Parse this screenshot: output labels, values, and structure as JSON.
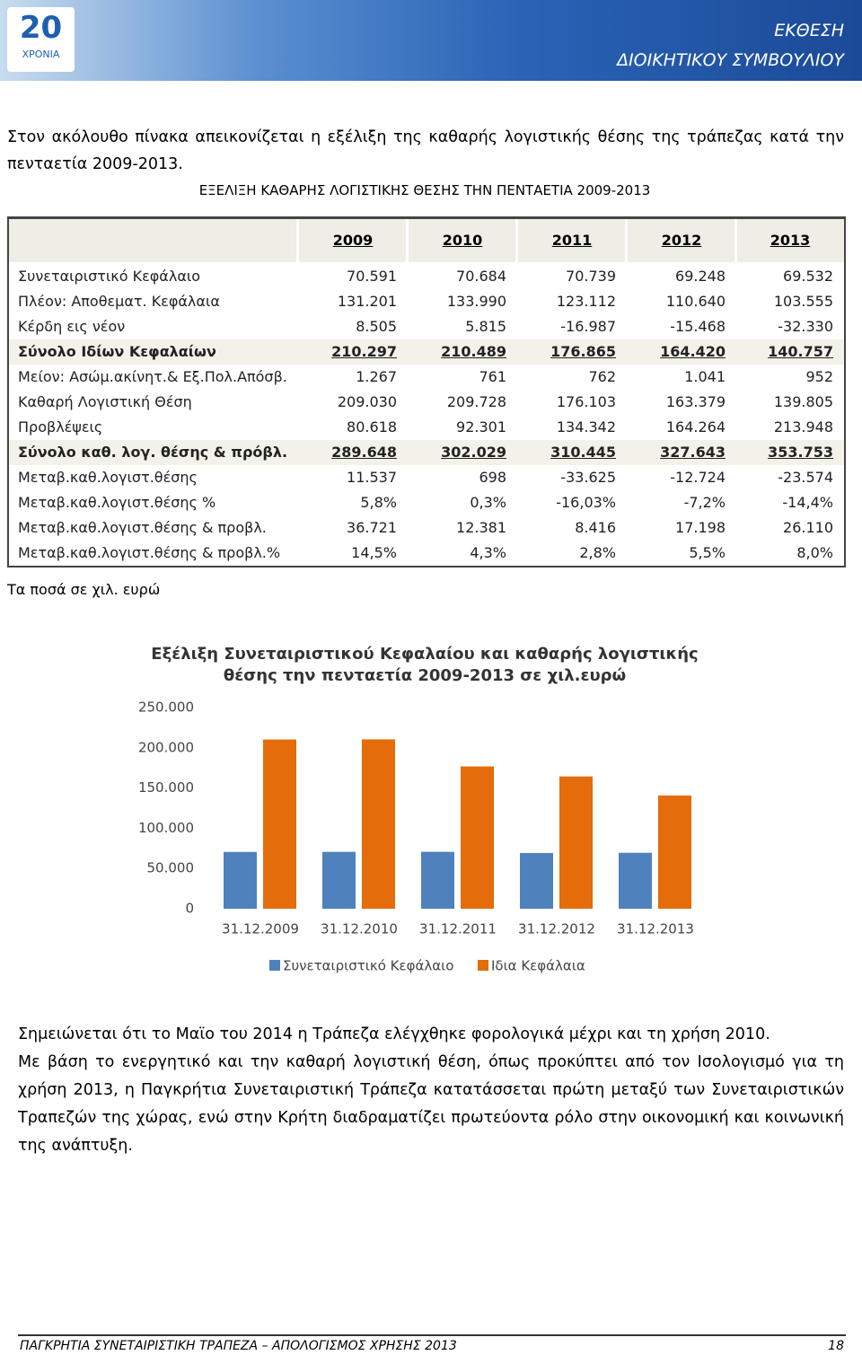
{
  "header": {
    "logo_number": "20",
    "logo_text": "ΧΡΟΝΙΑ",
    "title_line1": "ΕΚΘΕΣΗ",
    "title_line2": "ΔΙΟΙΚΗΤΙΚΟΥ ΣΥΜΒΟΥΛΙΟΥ"
  },
  "intro": "Στον ακόλουθο πίνακα απεικονίζεται η εξέλιξη της καθαρής λογιστικής θέσης της τράπεζας κατά την πενταετία 2009-2013.",
  "table": {
    "title": "ΕΞΕΛΙΞΗ ΚΑΘΑΡΗΣ ΛΟΓΙΣΤΙΚΗΣ ΘΕΣΗΣ ΤΗΝ ΠΕΝΤΑΕΤΙΑ 2009-2013",
    "columns": [
      "2009",
      "2010",
      "2011",
      "2012",
      "2013"
    ],
    "rows": [
      [
        "Συνεταιριστικό Κεφάλαιο",
        "70.591",
        "70.684",
        "70.739",
        "69.248",
        "69.532"
      ],
      [
        "Πλέον: Αποθεματ. Κεφάλαια",
        "131.201",
        "133.990",
        "123.112",
        "110.640",
        "103.555"
      ],
      [
        "Κέρδη εις νέον",
        "8.505",
        "5.815",
        "-16.987",
        "-15.468",
        "-32.330"
      ],
      [
        "Σύνολο Ιδίων Κεφαλαίων",
        "210.297",
        "210.489",
        "176.865",
        "164.420",
        "140.757"
      ],
      [
        "Μείον: Ασώμ.ακίνητ.& Εξ.Πολ.Απόσβ.",
        "1.267",
        "761",
        "762",
        "1.041",
        "952"
      ],
      [
        "Καθαρή Λογιστική Θέση",
        "209.030",
        "209.728",
        "176.103",
        "163.379",
        "139.805"
      ],
      [
        "Προβλέψεις",
        "80.618",
        "92.301",
        "134.342",
        "164.264",
        "213.948"
      ],
      [
        "Σύνολο καθ. λογ. θέσης & πρόβλ.",
        "289.648",
        "302.029",
        "310.445",
        "327.643",
        "353.753"
      ],
      [
        "Μεταβ.καθ.λογιστ.θέσης",
        "11.537",
        "698",
        "-33.625",
        "-12.724",
        "-23.574"
      ],
      [
        "Μεταβ.καθ.λογιστ.θέσης %",
        "5,8%",
        "0,3%",
        "-16,03%",
        "-7,2%",
        "-14,4%"
      ],
      [
        "Μεταβ.καθ.λογιστ.θέσης & προβλ.",
        "36.721",
        "12.381",
        "8.416",
        "17.198",
        "26.110"
      ],
      [
        "Μεταβ.καθ.λογιστ.θέσης & προβλ.%",
        "14,5%",
        "4,3%",
        "2,8%",
        "5,5%",
        "8,0%"
      ]
    ],
    "note": "Τα ποσά σε χιλ. ευρώ"
  },
  "chart": {
    "type": "bar",
    "title_line1": "Εξέλιξη Συνεταιριστικού Κεφαλαίου και καθαρής λογιστικής",
    "title_line2": "θέσης την πενταετία 2009-2013 σε χιλ.ευρώ",
    "categories": [
      "31.12.2009",
      "31.12.2010",
      "31.12.2011",
      "31.12.2012",
      "31.12.2013"
    ],
    "series": [
      {
        "name": "Συνεταιριστικό Κεφάλαιο",
        "color": "#4f81bd",
        "values": [
          70591,
          70684,
          70739,
          69248,
          69532
        ]
      },
      {
        "name": "Ιδια Κεφάλαια",
        "color": "#e46c0a",
        "values": [
          210297,
          210489,
          176865,
          164420,
          140757
        ]
      }
    ],
    "ylim": [
      0,
      250000
    ],
    "yticks": [
      0,
      {
        "value": 50000,
        "label": "50.000"
      },
      {
        "value": 100000,
        "label": "100.000"
      },
      {
        "value": 150000,
        "label": "150.000"
      },
      {
        "value": 200000,
        "label": "200.000"
      },
      {
        "value": 250000,
        "label": "250.000"
      }
    ]
  },
  "paragraphs": [
    "Σημειώνεται ότι το Μαϊο του 2014 η Τράπεζα ελέγχθηκε φορολογικά μέχρι και τη χρήση 2010.",
    "Με βάση το ενεργητικό και την καθαρή λογιστική θέση, όπως προκύπτει από τον Ισολογισμό για τη χρήση 2013, η Παγκρήτια Συνεταιριστική Τράπεζα κατατάσσεται πρώτη μεταξύ των Συνεταιριστικών Τραπεζών της χώρας, ενώ στην Κρήτη διαδραματίζει πρωτεύοντα ρόλο στην οικονομική και κοινωνική της ανάπτυξη."
  ],
  "footer": {
    "text": "ΠΑΓΚΡΗΤΙΑ ΣΥΝΕΤΑΙΡΙΣΤΙΚΗ ΤΡΑΠΕΖΑ – ΑΠΟΛΟΓΙΣΜΟΣ ΧΡΗΣΗΣ 2013",
    "page": "18"
  }
}
